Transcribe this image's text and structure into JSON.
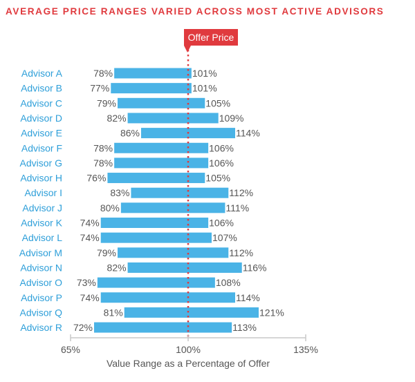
{
  "chart_data": {
    "type": "bar",
    "subtype": "floating-range",
    "title": "AVERAGE PRICE RANGES VARIED ACROSS MOST ACTIVE ADVISORS",
    "xlabel": "Value Range as a Percentage of Offer",
    "ylabel": "",
    "xlim": [
      65,
      135
    ],
    "xticks": [
      "65%",
      "100%",
      "135%"
    ],
    "reference_line": {
      "value": 100,
      "label": "Offer Price"
    },
    "categories": [
      "Advisor A",
      "Advisor B",
      "Advisor C",
      "Advisor D",
      "Advisor E",
      "Advisor F",
      "Advisor G",
      "Advisor H",
      "Advisor I",
      "Advisor J",
      "Advisor K",
      "Advisor L",
      "Advisor M",
      "Advisor N",
      "Advisor O",
      "Advisor P",
      "Advisor Q",
      "Advisor R"
    ],
    "low": [
      78,
      77,
      79,
      82,
      86,
      78,
      78,
      76,
      83,
      80,
      74,
      74,
      79,
      82,
      73,
      74,
      81,
      72
    ],
    "high": [
      101,
      101,
      105,
      109,
      114,
      106,
      106,
      105,
      112,
      111,
      106,
      107,
      112,
      116,
      108,
      114,
      121,
      113
    ],
    "low_labels": [
      "78%",
      "77%",
      "79%",
      "82%",
      "86%",
      "78%",
      "78%",
      "76%",
      "83%",
      "80%",
      "74%",
      "74%",
      "79%",
      "82%",
      "73%",
      "74%",
      "81%",
      "72%"
    ],
    "high_labels": [
      "101%",
      "101%",
      "105%",
      "109%",
      "114%",
      "106%",
      "106%",
      "105%",
      "112%",
      "111%",
      "106%",
      "107%",
      "112%",
      "116%",
      "108%",
      "114%",
      "121%",
      "113%"
    ],
    "colors": {
      "bar": "#4ab3e6",
      "category_label": "#2e9fd9",
      "accent": "#e03a3e",
      "axis": "#c8c8c8",
      "text": "#555555"
    }
  }
}
